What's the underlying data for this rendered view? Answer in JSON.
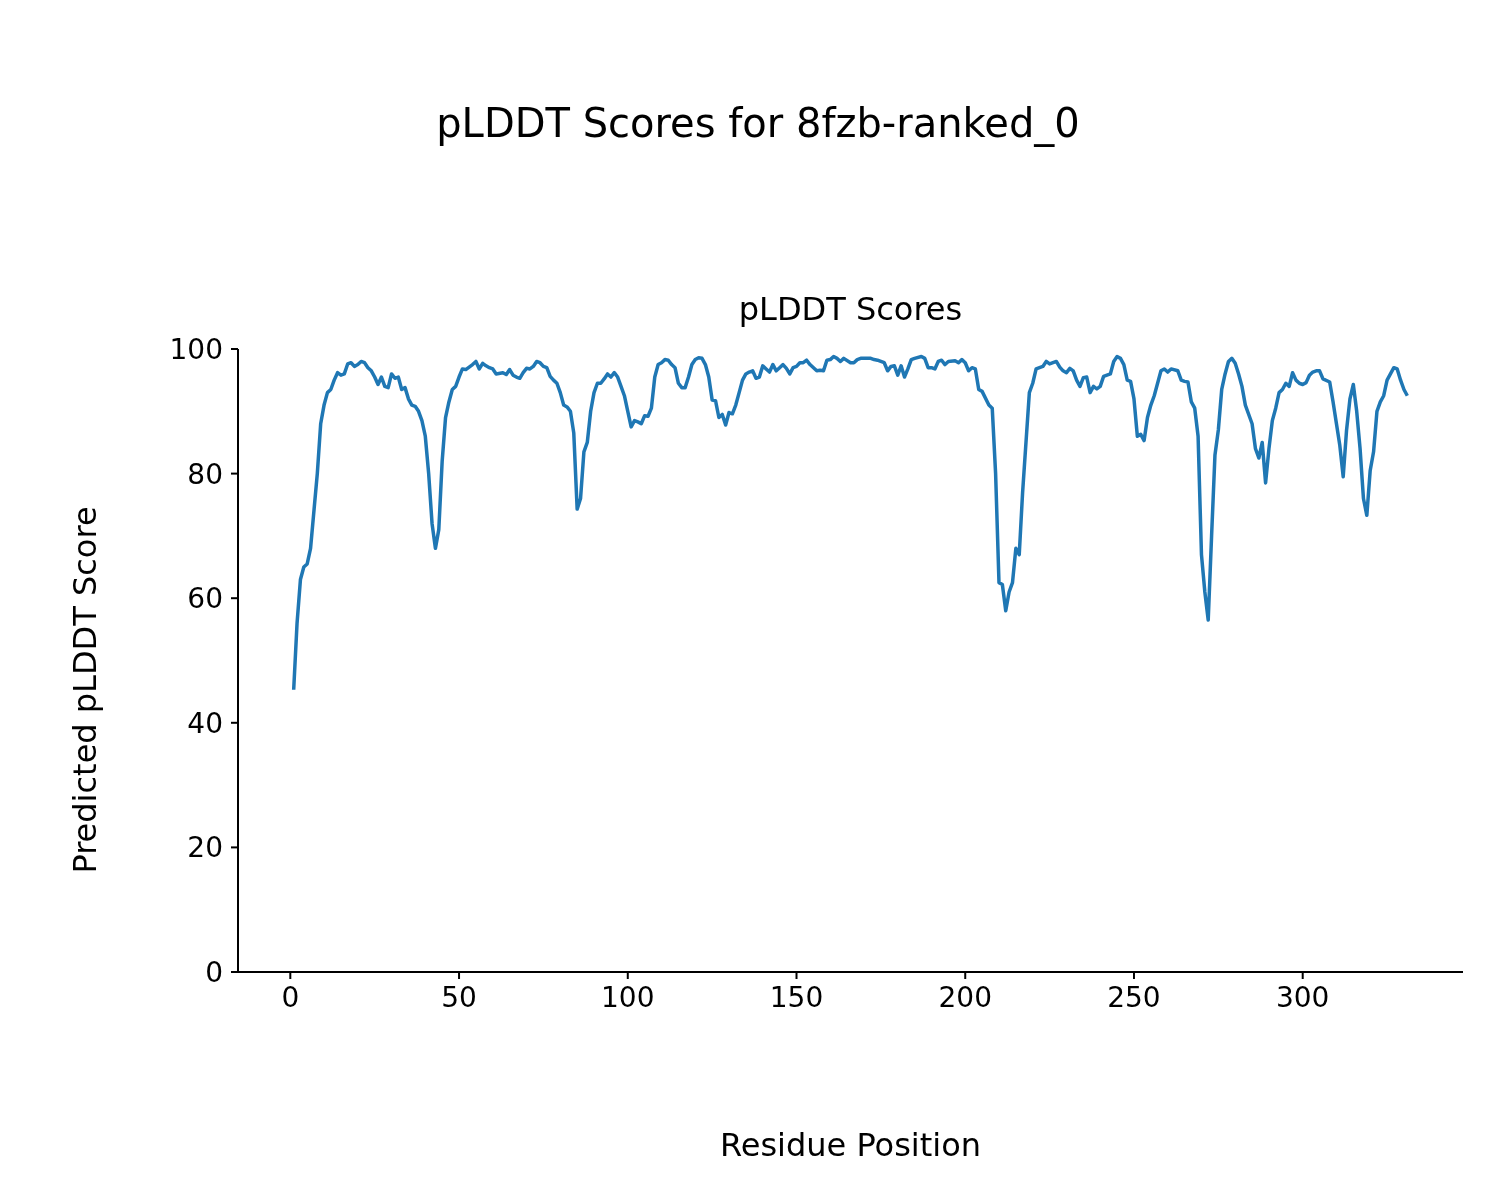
{
  "chart_data": {
    "type": "line",
    "title": "pLDDT Scores for 8fzb-ranked_0",
    "subtitle": "pLDDT Scores",
    "xlabel": "Residue Position",
    "ylabel": "Predicted pLDDT Score",
    "xlim": [
      -15.5,
      347.5
    ],
    "xticks": [
      0,
      50,
      100,
      150,
      200,
      250,
      300
    ],
    "ylim": [
      0,
      100
    ],
    "yticks": [
      0,
      20,
      40,
      60,
      80,
      100
    ],
    "grid": false,
    "legend": false,
    "marker": "none",
    "line_style": "solid",
    "series": [
      {
        "color": "#1f77b4",
        "x": [
          1,
          2,
          3,
          4,
          5,
          6,
          8,
          9,
          10,
          11,
          12,
          13,
          14,
          15,
          16,
          17,
          18,
          19,
          20,
          21,
          22,
          23,
          24,
          25,
          26,
          27,
          28,
          29,
          30,
          31,
          32,
          33,
          34,
          35,
          36,
          37,
          38,
          39,
          40,
          41,
          42,
          43,
          44,
          45,
          46,
          47,
          48,
          49,
          50,
          51,
          52,
          54,
          55,
          56,
          57,
          58,
          59,
          60,
          61,
          63,
          64,
          65,
          66,
          67,
          68,
          69,
          70,
          71,
          72,
          73,
          74,
          75,
          76,
          77,
          78,
          79,
          80,
          81,
          82,
          83,
          84,
          85,
          86,
          87,
          88,
          89,
          90,
          91,
          92,
          93,
          94,
          95,
          96,
          97,
          98,
          99,
          100,
          101,
          102,
          103,
          104,
          105,
          106,
          107,
          108,
          109,
          110,
          111,
          112,
          113,
          114,
          115,
          116,
          117,
          118,
          119,
          120,
          121,
          122,
          123,
          124,
          125,
          126,
          127,
          128,
          129,
          130,
          131,
          132,
          133,
          134,
          135,
          136,
          137,
          138,
          139,
          140,
          141,
          142,
          143,
          144,
          145,
          146,
          147,
          148,
          149,
          150,
          151,
          152,
          153,
          154,
          156,
          157,
          158,
          159,
          160,
          161,
          162,
          163,
          164,
          166,
          167,
          168,
          169,
          170,
          171,
          172,
          173,
          174,
          176,
          177,
          178,
          179,
          180,
          181,
          182,
          183,
          184,
          185,
          187,
          188,
          189,
          190,
          191,
          192,
          193,
          194,
          195,
          197,
          198,
          199,
          200,
          201,
          202,
          203,
          204,
          205,
          207,
          208,
          209,
          210,
          211,
          212,
          213,
          214,
          215,
          216,
          217,
          218,
          219,
          220,
          221,
          223,
          224,
          225,
          226,
          227,
          228,
          229,
          230,
          231,
          232,
          233,
          234,
          235,
          236,
          237,
          238,
          239,
          240,
          241,
          243,
          244,
          245,
          246,
          247,
          248,
          249,
          250,
          251,
          252,
          253,
          254,
          255,
          256,
          257,
          258,
          259,
          260,
          261,
          263,
          264,
          265,
          266,
          267,
          268,
          269,
          270,
          271,
          272,
          273,
          274,
          275,
          276,
          277,
          278,
          279,
          280,
          281,
          282,
          283,
          285,
          286,
          287,
          288,
          289,
          290,
          291,
          292,
          293,
          294,
          295,
          296,
          297,
          298,
          299,
          300,
          301,
          302,
          303,
          304,
          305,
          306,
          308,
          309,
          310,
          311,
          312,
          313,
          314,
          315,
          316,
          317,
          318,
          319,
          320,
          321,
          322,
          323,
          324,
          325,
          326,
          327,
          328,
          329,
          330,
          331
        ],
        "values": [
          45.3,
          56,
          63,
          65,
          65.5,
          68,
          80,
          88,
          91,
          93,
          93.5,
          95,
          96.2,
          95.8,
          96,
          97.6,
          97.8,
          97.2,
          97.5,
          98,
          97.8,
          97,
          96.5,
          95.5,
          94.3,
          95.5,
          94,
          93.8,
          96,
          95.3,
          95.5,
          93.5,
          93.8,
          92,
          91,
          90.8,
          90,
          88.5,
          86,
          80,
          72,
          68,
          71,
          82,
          89,
          91.5,
          93.5,
          94,
          95.5,
          96.8,
          96.7,
          97.5,
          98,
          96.8,
          97.7,
          97.3,
          97,
          96.8,
          96,
          96.2,
          95.9,
          96.7,
          95.8,
          95.5,
          95.3,
          96.2,
          96.9,
          96.8,
          97.2,
          98,
          97.8,
          97.2,
          97,
          95.6,
          95,
          94.5,
          93,
          91,
          90.7,
          90,
          86.5,
          74.3,
          76,
          83.5,
          85,
          90,
          93,
          94.5,
          94.5,
          95.2,
          96,
          95.5,
          96.2,
          95.5,
          94,
          92.5,
          90,
          87.5,
          88.5,
          88.3,
          88,
          89.3,
          89.2,
          90.5,
          95.5,
          97.5,
          97.8,
          98.3,
          98.2,
          97.5,
          97,
          94.5,
          93.8,
          93.8,
          95.5,
          97.5,
          98.3,
          98.6,
          98.5,
          97.5,
          95.5,
          91.8,
          91.7,
          89,
          89.5,
          87.8,
          89.8,
          89.6,
          91,
          93,
          95,
          96,
          96.3,
          96.5,
          95.3,
          95.5,
          97.3,
          96.8,
          96.3,
          97.5,
          96.5,
          97,
          97.5,
          96.9,
          96,
          97,
          97.2,
          97.8,
          97.8,
          98.2,
          97.5,
          96.5,
          96.6,
          96.5,
          98.2,
          98.3,
          98.8,
          98.5,
          98,
          98.5,
          97.8,
          97.8,
          98.3,
          98.5,
          98.5,
          98.5,
          98.5,
          98.3,
          98.2,
          97.8,
          96.5,
          97.2,
          97.3,
          95.8,
          97.3,
          95.5,
          96.8,
          98.3,
          98.5,
          98.8,
          98.5,
          97,
          97,
          96.8,
          98,
          98.2,
          97.5,
          98,
          98.1,
          97.8,
          98.3,
          97.8,
          96.5,
          97,
          96.8,
          93.5,
          93.2,
          91,
          90.5,
          80,
          62.5,
          62.2,
          58,
          61,
          62.5,
          68,
          67,
          77,
          85,
          93,
          94.5,
          96.8,
          97.2,
          98,
          97.6,
          97.8,
          98,
          97.1,
          96.5,
          96.2,
          96.9,
          96.5,
          95,
          94,
          95.4,
          95.5,
          93,
          94,
          93.6,
          94,
          95.6,
          96,
          98,
          98.8,
          98.5,
          97.5,
          95,
          94.8,
          92,
          86,
          86.3,
          85.3,
          89,
          91,
          92.5,
          94.5,
          96.5,
          96.8,
          96.3,
          96.8,
          96.5,
          95,
          94.8,
          94.7,
          91.5,
          90.5,
          86,
          67,
          61,
          56.5,
          70,
          83,
          87,
          93.5,
          96,
          98,
          98.5,
          97.7,
          96,
          94,
          91,
          88,
          84,
          82.5,
          85,
          78.5,
          84,
          88.5,
          90.5,
          93,
          93.5,
          94.5,
          94,
          96.2,
          95,
          94.5,
          94.3,
          94.6,
          95.8,
          96.3,
          96.5,
          96.5,
          95.2,
          94.7,
          91.5,
          88,
          84.5,
          79.5,
          87,
          92,
          94.3,
          90,
          84,
          76,
          73.3,
          80.5,
          83.5,
          90,
          91.5,
          92.5,
          95,
          96,
          97,
          96.8,
          95,
          93.5,
          92.5
        ]
      }
    ]
  }
}
